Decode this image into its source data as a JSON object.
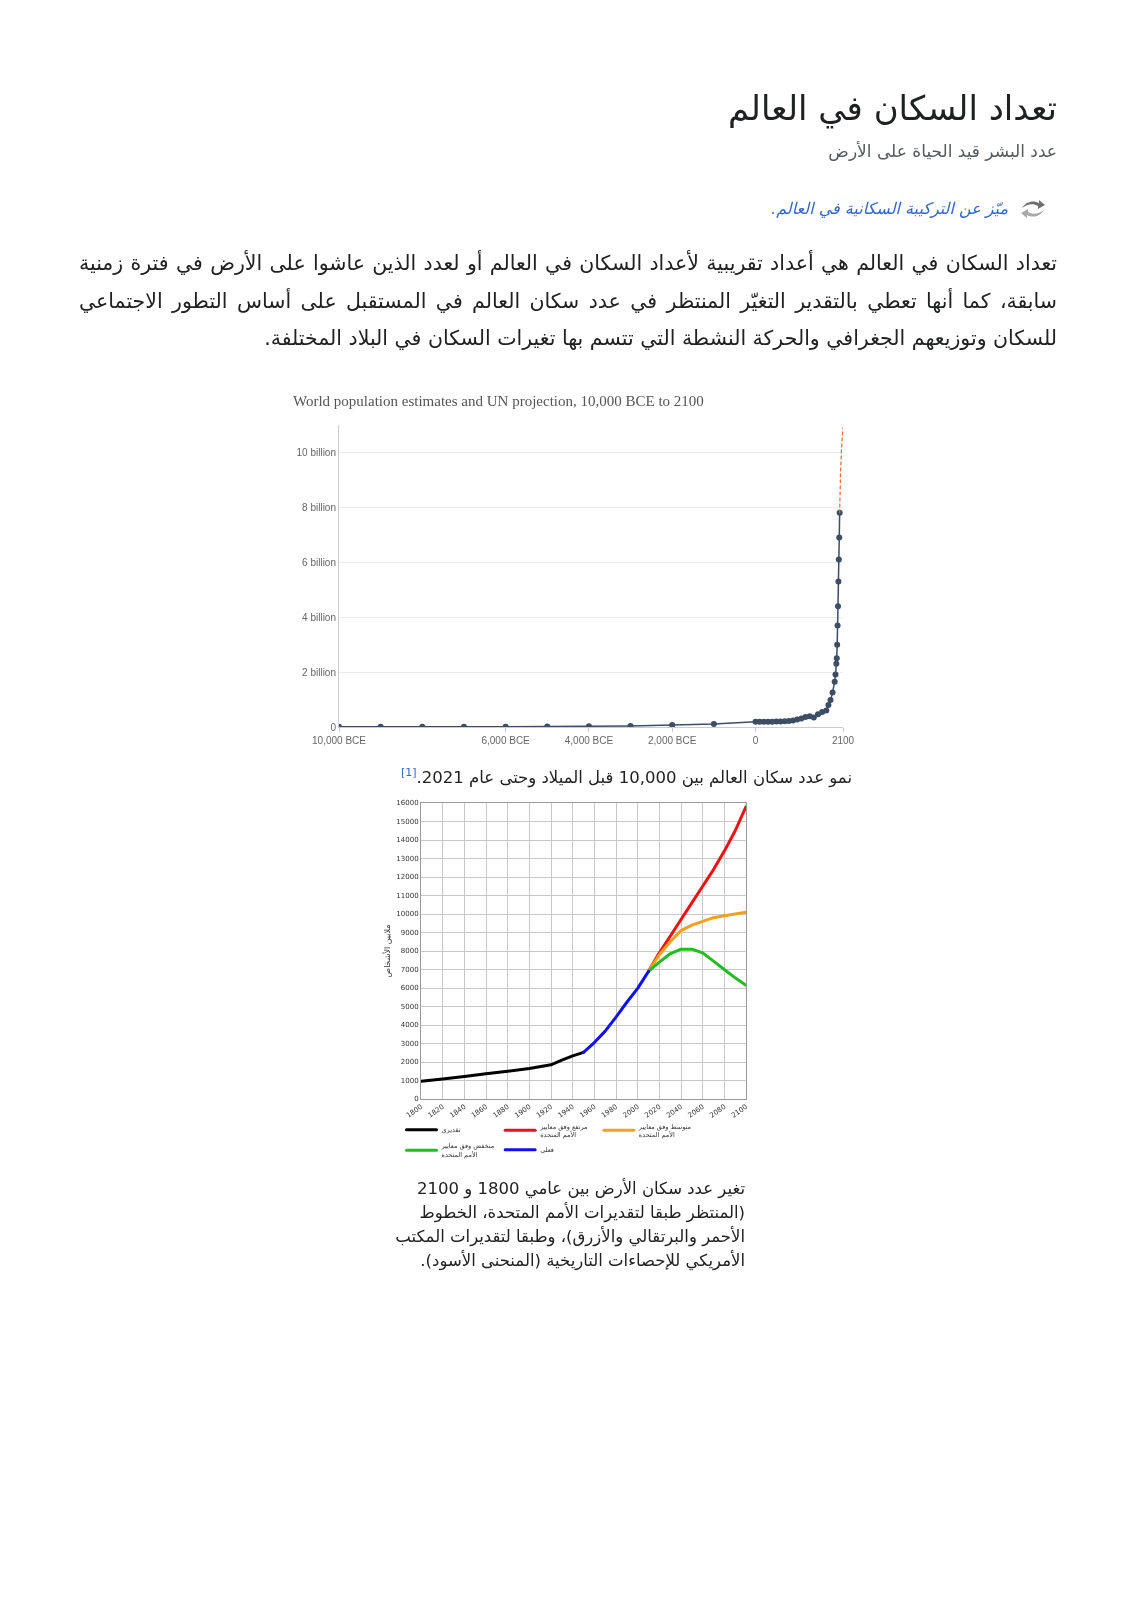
{
  "chart_data": [
    {
      "type": "other",
      "title": "تعداد السكان في العالم",
      "subtitle": "عدد البشر قيد الحياة على الأرض",
      "annotations": [
        "ميّز عن التركيبة السكانية في العالم.",
        "تعداد السكان في العالم هي أعداد تقريبية لأعداد السكان في العالم أو لعدد الذين عاشوا على الأرض في فترة زمنية سابقة، كما أنها تعطي بالتقدير التغيّر المنتظر في عدد سكان العالم في المستقبل على أساس التطور الاجتماعي للسكان وتوزيعهم الجغرافي والحركة النشطة التي تتسم بها تغيرات السكان في البلاد المختلفة."
      ]
    },
    {
      "type": "line",
      "title": "World population estimates and UN projection, 10,000 BCE to 2100",
      "xlim": [
        -10000,
        2100
      ],
      "xticks": [
        {
          "value": -10000,
          "label": "10,000 BCE"
        },
        {
          "value": -6000,
          "label": "6,000 BCE"
        },
        {
          "value": -4000,
          "label": "4,000 BCE"
        },
        {
          "value": -2000,
          "label": "2,000 BCE"
        },
        0,
        2100
      ],
      "ylim": [
        0,
        11
      ],
      "yticks": [
        0,
        {
          "value": 2,
          "label": "2 billion"
        },
        {
          "value": 4,
          "label": "4 billion"
        },
        {
          "value": 6,
          "label": "6 billion"
        },
        {
          "value": 8,
          "label": "8 billion"
        },
        {
          "value": 10,
          "label": "10 billion"
        }
      ],
      "grid": "y",
      "series": [
        {
          "color": "#3c4d66",
          "marker": "circle",
          "x": [
            -10000,
            -9000,
            -8000,
            -7000,
            -6000,
            -5000,
            -4000,
            -3000,
            -2000,
            -1000,
            0,
            100,
            200,
            300,
            400,
            500,
            600,
            700,
            800,
            900,
            1000,
            1100,
            1200,
            1300,
            1400,
            1500,
            1600,
            1700,
            1750,
            1800,
            1850,
            1900,
            1920,
            1940,
            1950,
            1960,
            1970,
            1980,
            1990,
            2000,
            2010,
            2020
          ],
          "values": [
            0.01,
            0.01,
            0.01,
            0.01,
            0.01,
            0.02,
            0.03,
            0.04,
            0.07,
            0.11,
            0.19,
            0.19,
            0.19,
            0.19,
            0.19,
            0.2,
            0.2,
            0.21,
            0.22,
            0.24,
            0.27,
            0.31,
            0.36,
            0.39,
            0.35,
            0.46,
            0.55,
            0.6,
            0.8,
            0.98,
            1.26,
            1.65,
            1.91,
            2.3,
            2.5,
            3.0,
            3.7,
            4.4,
            5.3,
            6.1,
            6.9,
            7.8
          ]
        },
        {
          "color": "#e4683a",
          "marker": "none",
          "line_style": "dotted",
          "x": [
            2020,
            2040,
            2060,
            2080,
            2100
          ],
          "values": [
            7.8,
            9.2,
            10.0,
            10.5,
            10.9
          ]
        }
      ],
      "annotations": [
        "نمو عدد سكان العالم بين 10,000 قبل الميلاد وحتى عام 2021.$^{[1]}$"
      ]
    },
    {
      "type": "line",
      "xlim": [
        1800,
        2100
      ],
      "xticks": [
        1800,
        1820,
        1840,
        1860,
        1880,
        1900,
        1920,
        1940,
        1960,
        1980,
        2000,
        2020,
        2040,
        2060,
        2080,
        2100
      ],
      "ylim": [
        0,
        16000
      ],
      "yticks": [
        0,
        1000,
        2000,
        3000,
        4000,
        5000,
        6000,
        7000,
        8000,
        9000,
        10000,
        11000,
        12000,
        13000,
        14000,
        15000,
        16000
      ],
      "ylabel": "ملايين الأشخاص",
      "grid": true,
      "legend": "bottom",
      "series": [
        {
          "name": "تقديري",
          "color": "#000000",
          "x": [
            1800,
            1820,
            1840,
            1860,
            1880,
            1900,
            1920,
            1930,
            1940,
            1950
          ],
          "values": [
            960,
            1080,
            1220,
            1360,
            1500,
            1650,
            1850,
            2100,
            2330,
            2520
          ]
        },
        {
          "name": "مرتفع وفق معايير\nالأمم المتحدة",
          "color": "#ee1111",
          "x": [
            2010,
            2020,
            2030,
            2040,
            2050,
            2060,
            2070,
            2080,
            2090,
            2100
          ],
          "values": [
            6900,
            7900,
            8800,
            9700,
            10600,
            11500,
            12400,
            13400,
            14500,
            15800
          ]
        },
        {
          "name": "متوسط وفق معايير\nالأمم المتحدة",
          "color": "#f5a01a",
          "x": [
            2010,
            2020,
            2030,
            2040,
            2050,
            2060,
            2070,
            2080,
            2090,
            2100
          ],
          "values": [
            6900,
            7800,
            8500,
            9100,
            9400,
            9600,
            9800,
            9900,
            10000,
            10100
          ]
        },
        {
          "name": "منخفض وفق معايير\nالأمم المتحدة",
          "color": "#22bb22",
          "x": [
            2010,
            2020,
            2030,
            2040,
            2050,
            2060,
            2070,
            2080,
            2090,
            2100
          ],
          "values": [
            6900,
            7400,
            7850,
            8100,
            8100,
            7900,
            7450,
            7000,
            6550,
            6150
          ]
        },
        {
          "name": "فعلي",
          "color": "#1111ee",
          "x": [
            1950,
            1960,
            1970,
            1980,
            1990,
            2000,
            2010
          ],
          "values": [
            2520,
            3050,
            3670,
            4430,
            5230,
            5980,
            6900
          ]
        }
      ],
      "annotations": [
        "تغير عدد سكان الأرض بين عامي 1800 و 2100 (المنتظر طبقا لتقديرات الأمم المتحدة، الخطوط الأحمر والبرتقالي والأزرق)، وطبقا لتقديرات المكتب الأمريكي للإحصاءات التاريخية (المنحنى الأسود)."
      ]
    }
  ]
}
